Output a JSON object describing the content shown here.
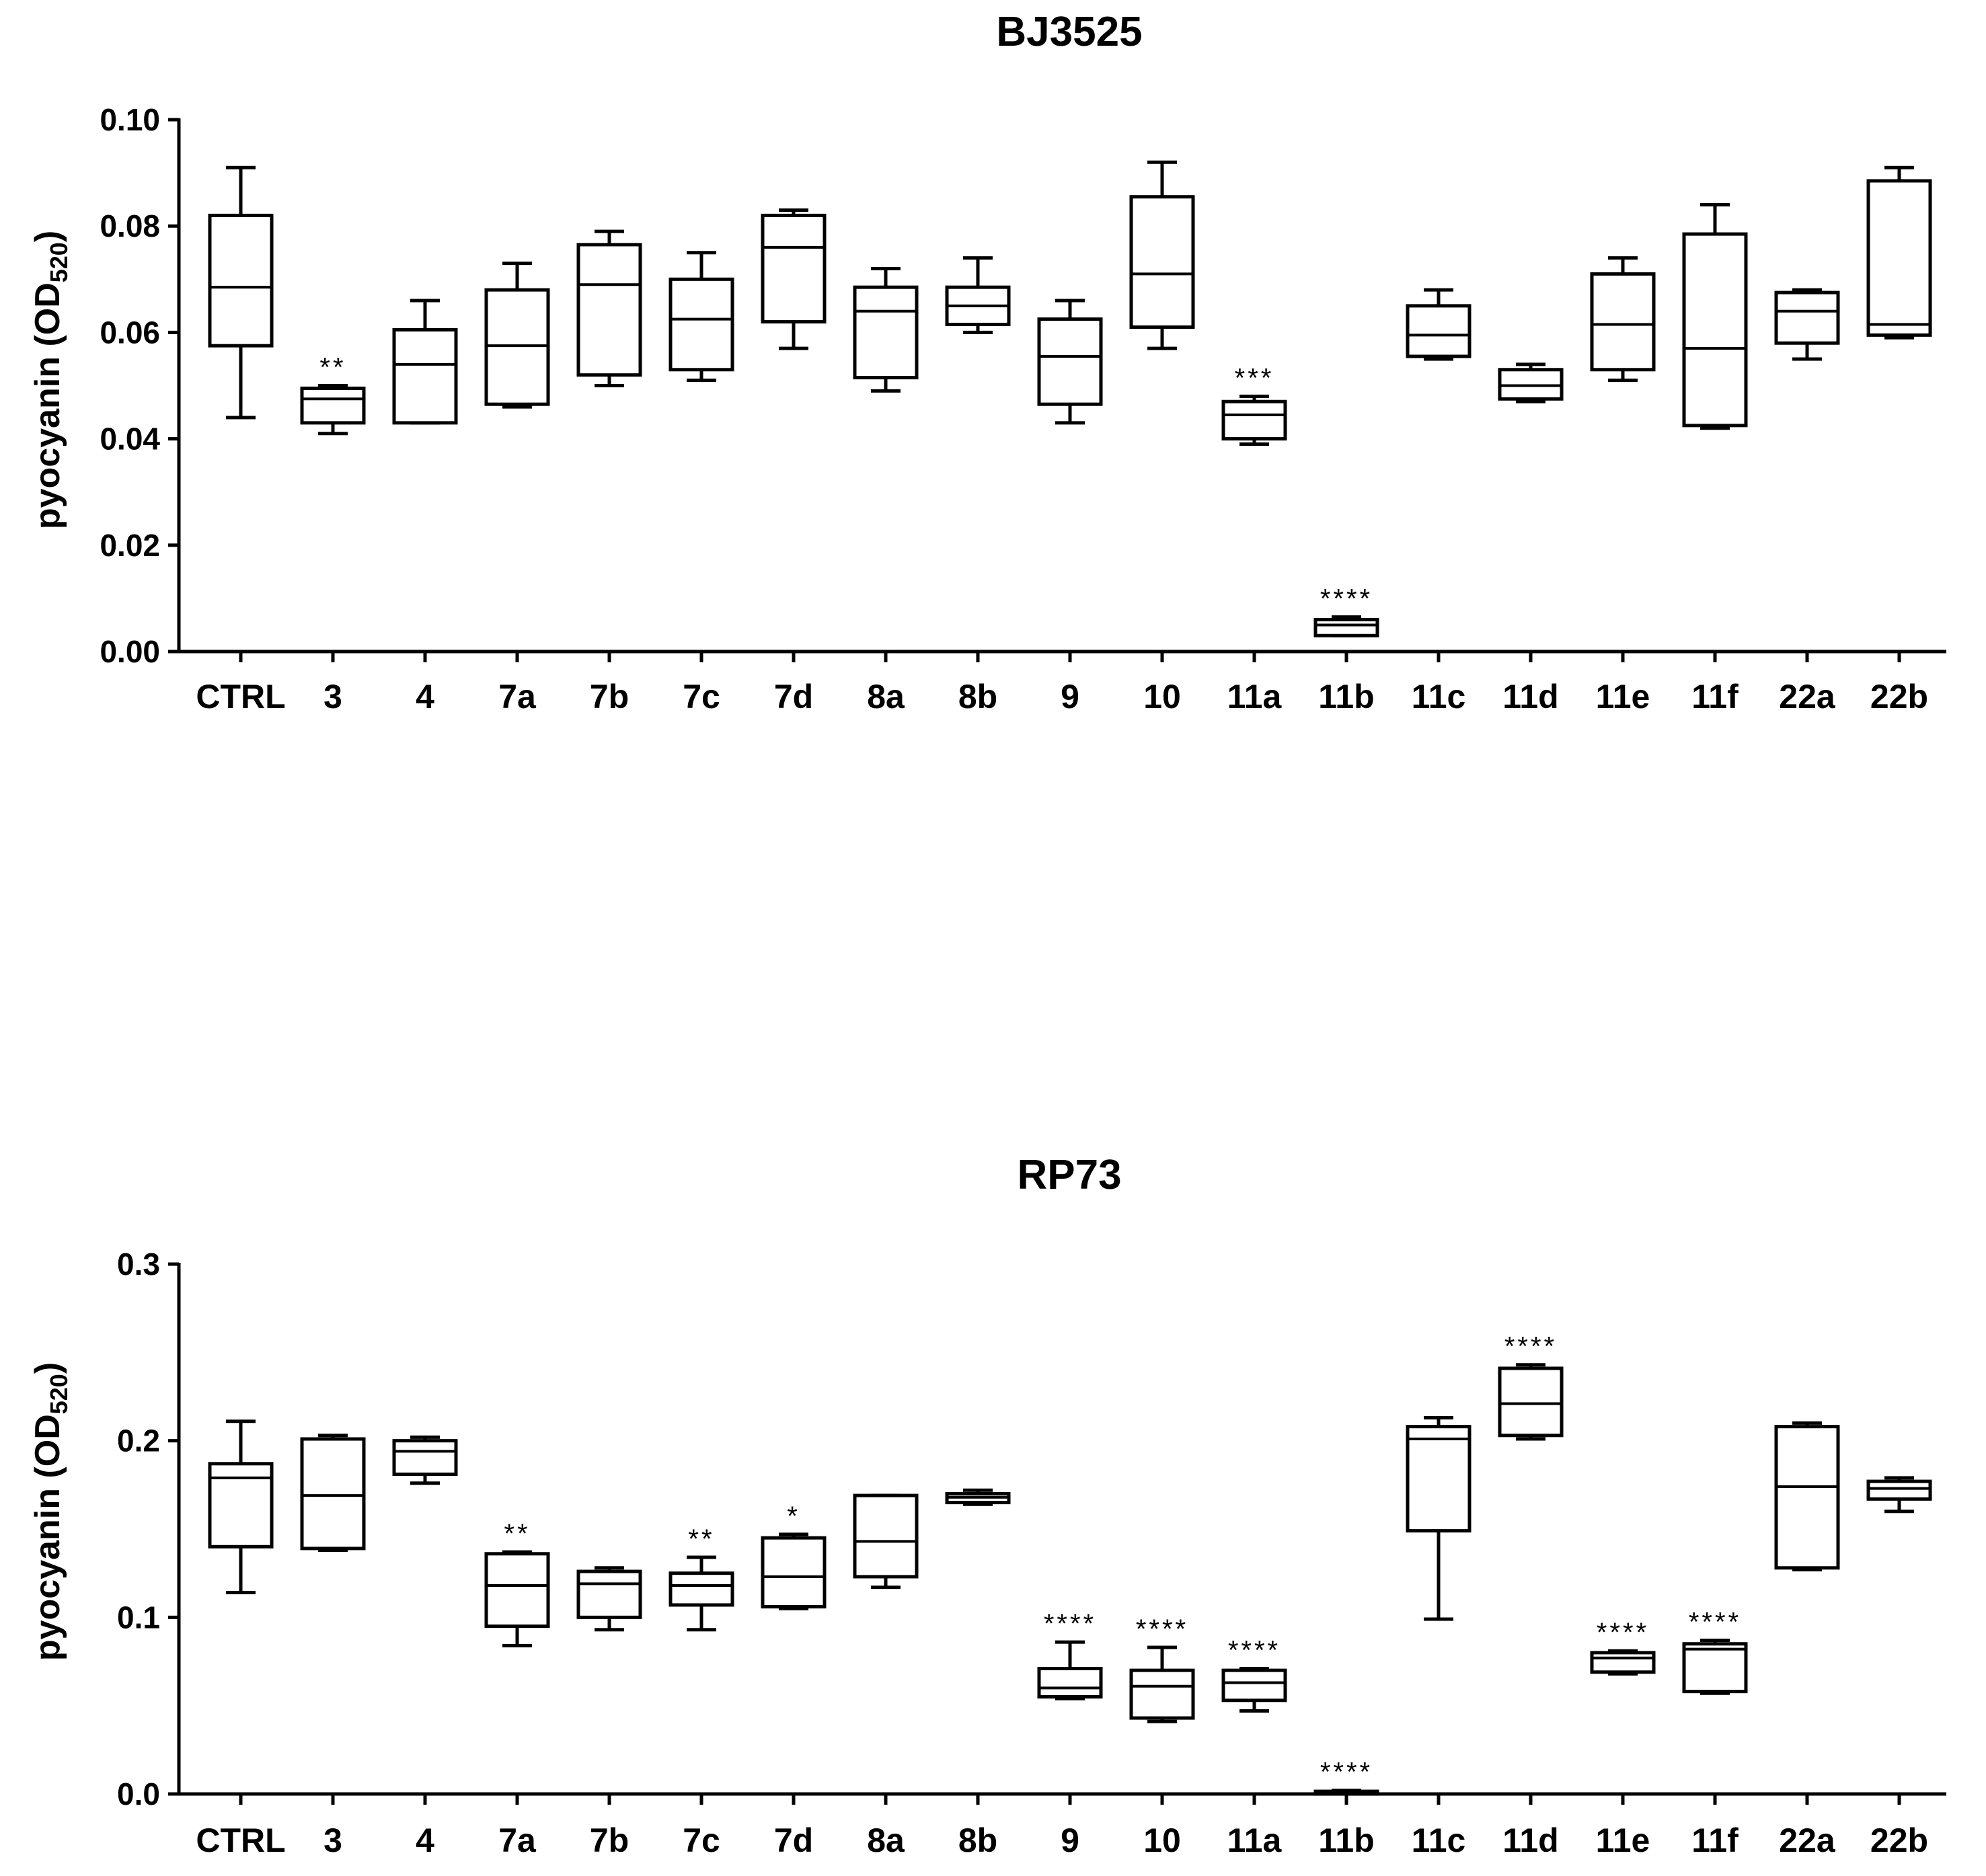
{
  "chart_data": [
    {
      "type": "box",
      "title": "BJ3525",
      "ylabel": "pyocyanin (OD",
      "ylabel_sub": "520",
      "ylabel_end": ")",
      "ylim": [
        0,
        0.1
      ],
      "yticks": [
        "0.00",
        "0.02",
        "0.04",
        "0.06",
        "0.08",
        "0.10"
      ],
      "ytick_values": [
        0,
        0.02,
        0.04,
        0.06,
        0.08,
        0.1
      ],
      "categories": [
        "CTRL",
        "3",
        "4",
        "7a",
        "7b",
        "7c",
        "7d",
        "8a",
        "8b",
        "9",
        "10",
        "11a",
        "11b",
        "11c",
        "11d",
        "11e",
        "11f",
        "22a",
        "22b"
      ],
      "boxes": [
        {
          "min": 0.044,
          "q1": 0.0575,
          "median": 0.0685,
          "q3": 0.082,
          "max": 0.091,
          "sig": ""
        },
        {
          "min": 0.041,
          "q1": 0.043,
          "median": 0.0475,
          "q3": 0.0495,
          "max": 0.05,
          "sig": "**"
        },
        {
          "min": 0.043,
          "q1": 0.043,
          "median": 0.054,
          "q3": 0.0605,
          "max": 0.066,
          "sig": ""
        },
        {
          "min": 0.046,
          "q1": 0.0465,
          "median": 0.0575,
          "q3": 0.068,
          "max": 0.073,
          "sig": ""
        },
        {
          "min": 0.05,
          "q1": 0.052,
          "median": 0.069,
          "q3": 0.0765,
          "max": 0.079,
          "sig": ""
        },
        {
          "min": 0.051,
          "q1": 0.053,
          "median": 0.0625,
          "q3": 0.07,
          "max": 0.075,
          "sig": ""
        },
        {
          "min": 0.057,
          "q1": 0.062,
          "median": 0.076,
          "q3": 0.082,
          "max": 0.083,
          "sig": ""
        },
        {
          "min": 0.049,
          "q1": 0.0515,
          "median": 0.064,
          "q3": 0.0685,
          "max": 0.072,
          "sig": ""
        },
        {
          "min": 0.06,
          "q1": 0.0615,
          "median": 0.065,
          "q3": 0.0685,
          "max": 0.074,
          "sig": ""
        },
        {
          "min": 0.043,
          "q1": 0.0465,
          "median": 0.0555,
          "q3": 0.0625,
          "max": 0.066,
          "sig": ""
        },
        {
          "min": 0.057,
          "q1": 0.061,
          "median": 0.071,
          "q3": 0.0855,
          "max": 0.092,
          "sig": ""
        },
        {
          "min": 0.039,
          "q1": 0.04,
          "median": 0.0445,
          "q3": 0.047,
          "max": 0.048,
          "sig": "***"
        },
        {
          "min": 0.003,
          "q1": 0.003,
          "median": 0.005,
          "q3": 0.006,
          "max": 0.0065,
          "sig": "****"
        },
        {
          "min": 0.055,
          "q1": 0.0555,
          "median": 0.0595,
          "q3": 0.065,
          "max": 0.068,
          "sig": ""
        },
        {
          "min": 0.047,
          "q1": 0.0475,
          "median": 0.05,
          "q3": 0.053,
          "max": 0.054,
          "sig": ""
        },
        {
          "min": 0.051,
          "q1": 0.053,
          "median": 0.0615,
          "q3": 0.071,
          "max": 0.074,
          "sig": ""
        },
        {
          "min": 0.042,
          "q1": 0.0425,
          "median": 0.057,
          "q3": 0.0785,
          "max": 0.084,
          "sig": ""
        },
        {
          "min": 0.055,
          "q1": 0.058,
          "median": 0.064,
          "q3": 0.0675,
          "max": 0.068,
          "sig": ""
        },
        {
          "min": 0.059,
          "q1": 0.0595,
          "median": 0.0615,
          "q3": 0.0885,
          "max": 0.091,
          "sig": ""
        }
      ]
    },
    {
      "type": "box",
      "title": "RP73",
      "ylabel": "pyocyanin (OD",
      "ylabel_sub": "520",
      "ylabel_end": ")",
      "ylim": [
        0,
        0.3
      ],
      "yticks": [
        "0.0",
        "0.1",
        "0.2",
        "0.3"
      ],
      "ytick_values": [
        0,
        0.1,
        0.2,
        0.3
      ],
      "categories": [
        "CTRL",
        "3",
        "4",
        "7a",
        "7b",
        "7c",
        "7d",
        "8a",
        "8b",
        "9",
        "10",
        "11a",
        "11b",
        "11c",
        "11d",
        "11e",
        "11f",
        "22a",
        "22b"
      ],
      "boxes": [
        {
          "min": 0.114,
          "q1": 0.14,
          "median": 0.179,
          "q3": 0.187,
          "max": 0.211,
          "sig": ""
        },
        {
          "min": 0.138,
          "q1": 0.139,
          "median": 0.169,
          "q3": 0.201,
          "max": 0.203,
          "sig": ""
        },
        {
          "min": 0.176,
          "q1": 0.181,
          "median": 0.194,
          "q3": 0.2,
          "max": 0.202,
          "sig": ""
        },
        {
          "min": 0.084,
          "q1": 0.095,
          "median": 0.118,
          "q3": 0.136,
          "max": 0.137,
          "sig": "**"
        },
        {
          "min": 0.093,
          "q1": 0.1,
          "median": 0.119,
          "q3": 0.126,
          "max": 0.128,
          "sig": ""
        },
        {
          "min": 0.093,
          "q1": 0.107,
          "median": 0.118,
          "q3": 0.125,
          "max": 0.134,
          "sig": "**"
        },
        {
          "min": 0.105,
          "q1": 0.106,
          "median": 0.123,
          "q3": 0.145,
          "max": 0.147,
          "sig": "*"
        },
        {
          "min": 0.117,
          "q1": 0.123,
          "median": 0.143,
          "q3": 0.169,
          "max": 0.169,
          "sig": ""
        },
        {
          "min": 0.164,
          "q1": 0.165,
          "median": 0.168,
          "q3": 0.17,
          "max": 0.172,
          "sig": ""
        },
        {
          "min": 0.054,
          "q1": 0.055,
          "median": 0.06,
          "q3": 0.071,
          "max": 0.086,
          "sig": "****"
        },
        {
          "min": 0.041,
          "q1": 0.043,
          "median": 0.061,
          "q3": 0.07,
          "max": 0.083,
          "sig": "****"
        },
        {
          "min": 0.047,
          "q1": 0.053,
          "median": 0.063,
          "q3": 0.07,
          "max": 0.071,
          "sig": "****"
        },
        {
          "min": 0.0,
          "q1": 0.0005,
          "median": 0.001,
          "q3": 0.0015,
          "max": 0.002,
          "sig": "****"
        },
        {
          "min": 0.099,
          "q1": 0.149,
          "median": 0.201,
          "q3": 0.208,
          "max": 0.213,
          "sig": ""
        },
        {
          "min": 0.201,
          "q1": 0.203,
          "median": 0.221,
          "q3": 0.241,
          "max": 0.243,
          "sig": "****"
        },
        {
          "min": 0.068,
          "q1": 0.069,
          "median": 0.077,
          "q3": 0.08,
          "max": 0.081,
          "sig": "****"
        },
        {
          "min": 0.057,
          "q1": 0.058,
          "median": 0.082,
          "q3": 0.085,
          "max": 0.087,
          "sig": "****"
        },
        {
          "min": 0.127,
          "q1": 0.128,
          "median": 0.174,
          "q3": 0.208,
          "max": 0.21,
          "sig": ""
        },
        {
          "min": 0.16,
          "q1": 0.167,
          "median": 0.173,
          "q3": 0.177,
          "max": 0.179,
          "sig": ""
        }
      ]
    }
  ]
}
